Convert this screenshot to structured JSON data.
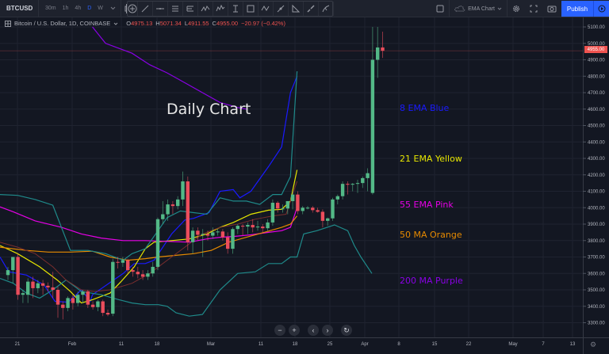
{
  "toolbar": {
    "symbol": "BTCUSD",
    "timeframes": [
      {
        "label": "30m",
        "active": false
      },
      {
        "label": "1h",
        "active": false
      },
      {
        "label": "4h",
        "active": false
      },
      {
        "label": "D",
        "active": true
      },
      {
        "label": "W",
        "active": false
      }
    ],
    "timeframe_dropdown_icon": "chevron-down-icon",
    "chart_type_icon": "candles-icon",
    "indicators_icon": "plus-circle-icon",
    "drawing_tools": [
      "trend-line-icon",
      "horizontal-ray-icon",
      "pitchfork-icon",
      "fib-retracement-icon",
      "xabcd-pattern-icon",
      "elliott-wave-icon",
      "date-range-icon",
      "rectangle-icon",
      "abcd-pattern-icon",
      "long-position-icon",
      "triangle-icon",
      "brush-icon",
      "path-icon"
    ],
    "layout_name": "EMA Chart",
    "publish_label": "Publish"
  },
  "legend": {
    "title": "Bitcoin / U.S. Dollar, 1D, COINBASE",
    "open_label": "O",
    "open": "4975.13",
    "high_label": "H",
    "high": "5071.34",
    "low_label": "L",
    "low": "4911.55",
    "close_label": "C",
    "close": "4955.00",
    "change": "−20.97 (−0.42%)"
  },
  "annotations": {
    "title": "Daily Chart",
    "labels": [
      {
        "text": "8 EMA Blue",
        "color": "#1a1aff"
      },
      {
        "text": "21 EMA Yellow",
        "color": "#e6e600"
      },
      {
        "text": "55 EMA Pink",
        "color": "#e600e6"
      },
      {
        "text": "50 MA Orange",
        "color": "#e68a00"
      },
      {
        "text": "200 MA Purple",
        "color": "#8a00e6"
      }
    ]
  },
  "colors": {
    "background": "#131722",
    "grid": "#1f2330",
    "up": "#53b987",
    "down": "#eb4d5c",
    "ema8": "#1a1aff",
    "ema21": "#e6e600",
    "ema55": "#e600e6",
    "ma50": "#e68a00",
    "ma200": "#8a00e6",
    "bb": "#1f8a8a",
    "bb_basis": "#7a2e2e",
    "last_price": "#ef5350"
  },
  "chart_data": {
    "type": "candlestick",
    "title": "Daily Chart",
    "symbol": "Bitcoin / U.S. Dollar, 1D, COINBASE",
    "y_axis": {
      "ticks": [
        5100,
        5000,
        4900,
        4800,
        4700,
        4600,
        4500,
        4400,
        4300,
        4200,
        4100,
        4000,
        3900,
        3800,
        3700,
        3600,
        3500,
        3400,
        3300
      ],
      "tick_labels": [
        "5100.00",
        "5000.00",
        "4900.00",
        "4800.00",
        "4700.00",
        "4600.00",
        "4500.00",
        "4400.00",
        "4300.00",
        "4200.00",
        "4100.00",
        "4000.00",
        "3900.00",
        "3800.00",
        "3700.00",
        "3600.00",
        "3500.00",
        "3400.00",
        "3300.00"
      ],
      "last_price_label": "4955.00"
    },
    "x_axis": {
      "tick_labels": [
        "21",
        "Feb",
        "11",
        "18",
        "Mar",
        "11",
        "18",
        "25",
        "Apr",
        "8",
        "15",
        "22",
        "May",
        "7",
        "13"
      ],
      "tick_x": [
        22,
        91,
        153,
        198,
        266,
        329,
        372,
        416,
        460,
        503,
        548,
        591,
        647,
        685,
        722
      ]
    },
    "candles_ohlc": [
      [
        3590,
        3640,
        3560,
        3620
      ],
      [
        3620,
        3660,
        3540,
        3700
      ],
      [
        3700,
        3720,
        3440,
        3470
      ],
      [
        3470,
        3500,
        3420,
        3480
      ],
      [
        3470,
        3570,
        3420,
        3550
      ],
      [
        3550,
        3580,
        3450,
        3510
      ],
      [
        3510,
        3560,
        3480,
        3540
      ],
      [
        3540,
        3560,
        3470,
        3525
      ],
      [
        3525,
        3545,
        3490,
        3515
      ],
      [
        3515,
        3610,
        3450,
        3500
      ],
      [
        3500,
        3520,
        3330,
        3410
      ],
      [
        3410,
        3430,
        3320,
        3390
      ],
      [
        3390,
        3460,
        3370,
        3450
      ],
      [
        3450,
        3470,
        3380,
        3420
      ],
      [
        3420,
        3490,
        3400,
        3470
      ],
      [
        3470,
        3500,
        3420,
        3490
      ],
      [
        3490,
        3500,
        3390,
        3410
      ],
      [
        3410,
        3430,
        3380,
        3395
      ],
      [
        3395,
        3440,
        3370,
        3430
      ],
      [
        3430,
        3440,
        3340,
        3360
      ],
      [
        3360,
        3380,
        3340,
        3350
      ],
      [
        3355,
        3690,
        3340,
        3670
      ],
      [
        3670,
        3700,
        3630,
        3665
      ],
      [
        3665,
        3700,
        3640,
        3680
      ],
      [
        3680,
        3690,
        3600,
        3620
      ],
      [
        3620,
        3640,
        3580,
        3610
      ],
      [
        3610,
        3640,
        3570,
        3595
      ],
      [
        3595,
        3620,
        3560,
        3580
      ],
      [
        3580,
        3620,
        3560,
        3600
      ],
      [
        3600,
        3670,
        3580,
        3640
      ],
      [
        3640,
        3940,
        3620,
        3930
      ],
      [
        3930,
        4040,
        3900,
        3960
      ],
      [
        3960,
        4050,
        3920,
        4020
      ],
      [
        4020,
        4040,
        3960,
        4010
      ],
      [
        4010,
        4070,
        3990,
        4050
      ],
      [
        4050,
        4220,
        4010,
        4160
      ],
      [
        4160,
        4190,
        3740,
        3790
      ],
      [
        3790,
        3880,
        3720,
        3860
      ],
      [
        3860,
        3880,
        3800,
        3835
      ],
      [
        3835,
        3870,
        3700,
        3840
      ],
      [
        3840,
        3860,
        3800,
        3830
      ],
      [
        3830,
        3880,
        3810,
        3850
      ],
      [
        3850,
        3870,
        3830,
        3855
      ],
      [
        3855,
        3870,
        3800,
        3820
      ],
      [
        3820,
        3850,
        3720,
        3750
      ],
      [
        3750,
        3880,
        3720,
        3870
      ],
      [
        3870,
        3900,
        3840,
        3890
      ],
      [
        3890,
        3900,
        3830,
        3885
      ],
      [
        3885,
        3910,
        3840,
        3895
      ],
      [
        3895,
        3930,
        3850,
        3880
      ],
      [
        3880,
        3920,
        3860,
        3885
      ],
      [
        3885,
        3900,
        3850,
        3875
      ],
      [
        3875,
        3930,
        3860,
        3910
      ],
      [
        3910,
        4050,
        3890,
        4030
      ],
      [
        4030,
        4040,
        3970,
        3995
      ],
      [
        3995,
        4020,
        3970,
        3995
      ],
      [
        3995,
        4040,
        3960,
        4040
      ],
      [
        4040,
        4100,
        3990,
        4080
      ],
      [
        4080,
        4100,
        3960,
        3980
      ],
      [
        3980,
        4010,
        3960,
        4000
      ],
      [
        4000,
        4010,
        3990,
        4000
      ],
      [
        4000,
        4010,
        3970,
        3985
      ],
      [
        3985,
        4000,
        3970,
        3975
      ],
      [
        3975,
        3990,
        3880,
        3920
      ],
      [
        3920,
        3940,
        3890,
        3935
      ],
      [
        3935,
        4060,
        3920,
        4050
      ],
      [
        4050,
        4080,
        4020,
        4070
      ],
      [
        4070,
        4160,
        4050,
        4145
      ],
      [
        4145,
        4160,
        4080,
        4140
      ],
      [
        4140,
        4150,
        4100,
        4145
      ],
      [
        4145,
        4170,
        4090,
        4150
      ],
      [
        4150,
        4190,
        4120,
        4180
      ],
      [
        4180,
        4240,
        4100,
        4210
      ],
      [
        4090,
        5100,
        4080,
        4900
      ],
      [
        4900,
        5100,
        4790,
        4975
      ],
      [
        4975.13,
        5071.34,
        4911.55,
        4955.0
      ]
    ],
    "candles_start_x": 10,
    "candle_spacing": 6.3,
    "series": [
      {
        "name": "8 EMA",
        "color": "#1a1aff",
        "points": [
          [
            0,
            3700
          ],
          [
            20,
            3610
          ],
          [
            60,
            3590
          ],
          [
            100,
            3530
          ],
          [
            125,
            3430
          ],
          [
            155,
            3425
          ],
          [
            185,
            3500
          ],
          [
            205,
            3430
          ],
          [
            210,
            3470
          ],
          [
            250,
            3545
          ],
          [
            280,
            3600
          ],
          [
            305,
            3660
          ],
          [
            330,
            3660
          ],
          [
            350,
            3680
          ],
          [
            390,
            3840
          ],
          [
            420,
            3925
          ],
          [
            440,
            3935
          ],
          [
            475,
            3970
          ],
          [
            500,
            4100
          ],
          [
            530,
            4110
          ],
          [
            545,
            4060
          ],
          [
            570,
            4100
          ],
          [
            610,
            4250
          ],
          [
            640,
            4370
          ],
          [
            660,
            4700
          ],
          [
            675,
            4800
          ]
        ]
      },
      {
        "name": "21 EMA",
        "color": "#e6e600",
        "points": [
          [
            0,
            3770
          ],
          [
            40,
            3720
          ],
          [
            90,
            3640
          ],
          [
            130,
            3560
          ],
          [
            160,
            3490
          ],
          [
            185,
            3420
          ],
          [
            210,
            3440
          ],
          [
            250,
            3480
          ],
          [
            275,
            3550
          ],
          [
            305,
            3640
          ],
          [
            330,
            3750
          ],
          [
            350,
            3790
          ],
          [
            390,
            3800
          ],
          [
            430,
            3810
          ],
          [
            470,
            3840
          ],
          [
            500,
            3880
          ],
          [
            530,
            3910
          ],
          [
            570,
            3960
          ],
          [
            610,
            3985
          ],
          [
            640,
            3990
          ],
          [
            660,
            4040
          ],
          [
            675,
            4230
          ]
        ]
      },
      {
        "name": "55 EMA",
        "color": "#e600e6",
        "points": [
          [
            0,
            4005
          ],
          [
            30,
            3975
          ],
          [
            80,
            3920
          ],
          [
            140,
            3880
          ],
          [
            185,
            3840
          ],
          [
            230,
            3815
          ],
          [
            280,
            3800
          ],
          [
            330,
            3800
          ],
          [
            380,
            3795
          ],
          [
            430,
            3790
          ],
          [
            470,
            3810
          ],
          [
            500,
            3820
          ],
          [
            530,
            3825
          ],
          [
            570,
            3835
          ],
          [
            610,
            3850
          ],
          [
            640,
            3860
          ],
          [
            660,
            3880
          ],
          [
            675,
            4000
          ]
        ]
      },
      {
        "name": "50 MA",
        "color": "#e68a00",
        "points": [
          [
            0,
            3760
          ],
          [
            60,
            3740
          ],
          [
            110,
            3730
          ],
          [
            160,
            3730
          ],
          [
            210,
            3735
          ],
          [
            250,
            3700
          ],
          [
            290,
            3680
          ],
          [
            330,
            3690
          ],
          [
            360,
            3700
          ],
          [
            400,
            3710
          ],
          [
            440,
            3720
          ],
          [
            480,
            3740
          ],
          [
            520,
            3790
          ],
          [
            560,
            3820
          ],
          [
            600,
            3850
          ],
          [
            640,
            3880
          ],
          [
            660,
            3900
          ],
          [
            675,
            3950
          ]
        ]
      },
      {
        "name": "200 MA",
        "color": "#8a00e6",
        "points": [
          [
            210,
            5100
          ],
          [
            240,
            5000
          ],
          [
            300,
            4940
          ],
          [
            340,
            4870
          ],
          [
            380,
            4820
          ],
          [
            420,
            4760
          ],
          [
            460,
            4700
          ],
          [
            500,
            4640
          ],
          [
            540,
            4610
          ],
          [
            560,
            4600
          ]
        ]
      },
      {
        "name": "BB upper",
        "color": "#1f8a8a",
        "points": [
          [
            0,
            4080
          ],
          [
            40,
            4075
          ],
          [
            80,
            4050
          ],
          [
            120,
            4015
          ],
          [
            160,
            3740
          ],
          [
            200,
            3740
          ],
          [
            240,
            3720
          ],
          [
            280,
            3680
          ],
          [
            300,
            3720
          ],
          [
            330,
            3750
          ],
          [
            380,
            3940
          ],
          [
            410,
            3980
          ],
          [
            440,
            3970
          ],
          [
            470,
            3960
          ],
          [
            500,
            4060
          ],
          [
            530,
            4040
          ],
          [
            560,
            4040
          ],
          [
            590,
            4020
          ],
          [
            620,
            4080
          ],
          [
            640,
            4080
          ],
          [
            660,
            4190
          ],
          [
            675,
            4830
          ]
        ]
      },
      {
        "name": "BB lower",
        "color": "#1f8a8a",
        "points": [
          [
            0,
            3570
          ],
          [
            30,
            3540
          ],
          [
            60,
            3480
          ],
          [
            90,
            3450
          ],
          [
            120,
            3500
          ],
          [
            150,
            3560
          ],
          [
            185,
            3490
          ],
          [
            230,
            3470
          ],
          [
            270,
            3440
          ],
          [
            300,
            3420
          ],
          [
            330,
            3410
          ],
          [
            360,
            3410
          ],
          [
            380,
            3400
          ],
          [
            400,
            3360
          ],
          [
            430,
            3340
          ],
          [
            460,
            3350
          ],
          [
            500,
            3500
          ],
          [
            540,
            3600
          ],
          [
            580,
            3610
          ],
          [
            610,
            3660
          ],
          [
            640,
            3660
          ],
          [
            660,
            3700
          ],
          [
            675,
            3700
          ],
          [
            690,
            3840
          ],
          [
            720,
            3860
          ],
          [
            760,
            3895
          ],
          [
            790,
            3860
          ],
          [
            805,
            3770
          ],
          [
            820,
            3700
          ],
          [
            835,
            3640
          ],
          [
            845,
            3600
          ]
        ]
      }
    ],
    "bb_lower_tail": [
      [
        422,
        310
      ],
      [
        426,
        330
      ],
      [
        430,
        340
      ],
      [
        434,
        350
      ],
      [
        440,
        358
      ]
    ],
    "grid": true,
    "legend_position": "annotations right"
  },
  "nav_buttons": {
    "zoom_out": "−",
    "zoom_in": "+",
    "scroll_left": "‹",
    "scroll_right": "›",
    "reset": "↻"
  }
}
